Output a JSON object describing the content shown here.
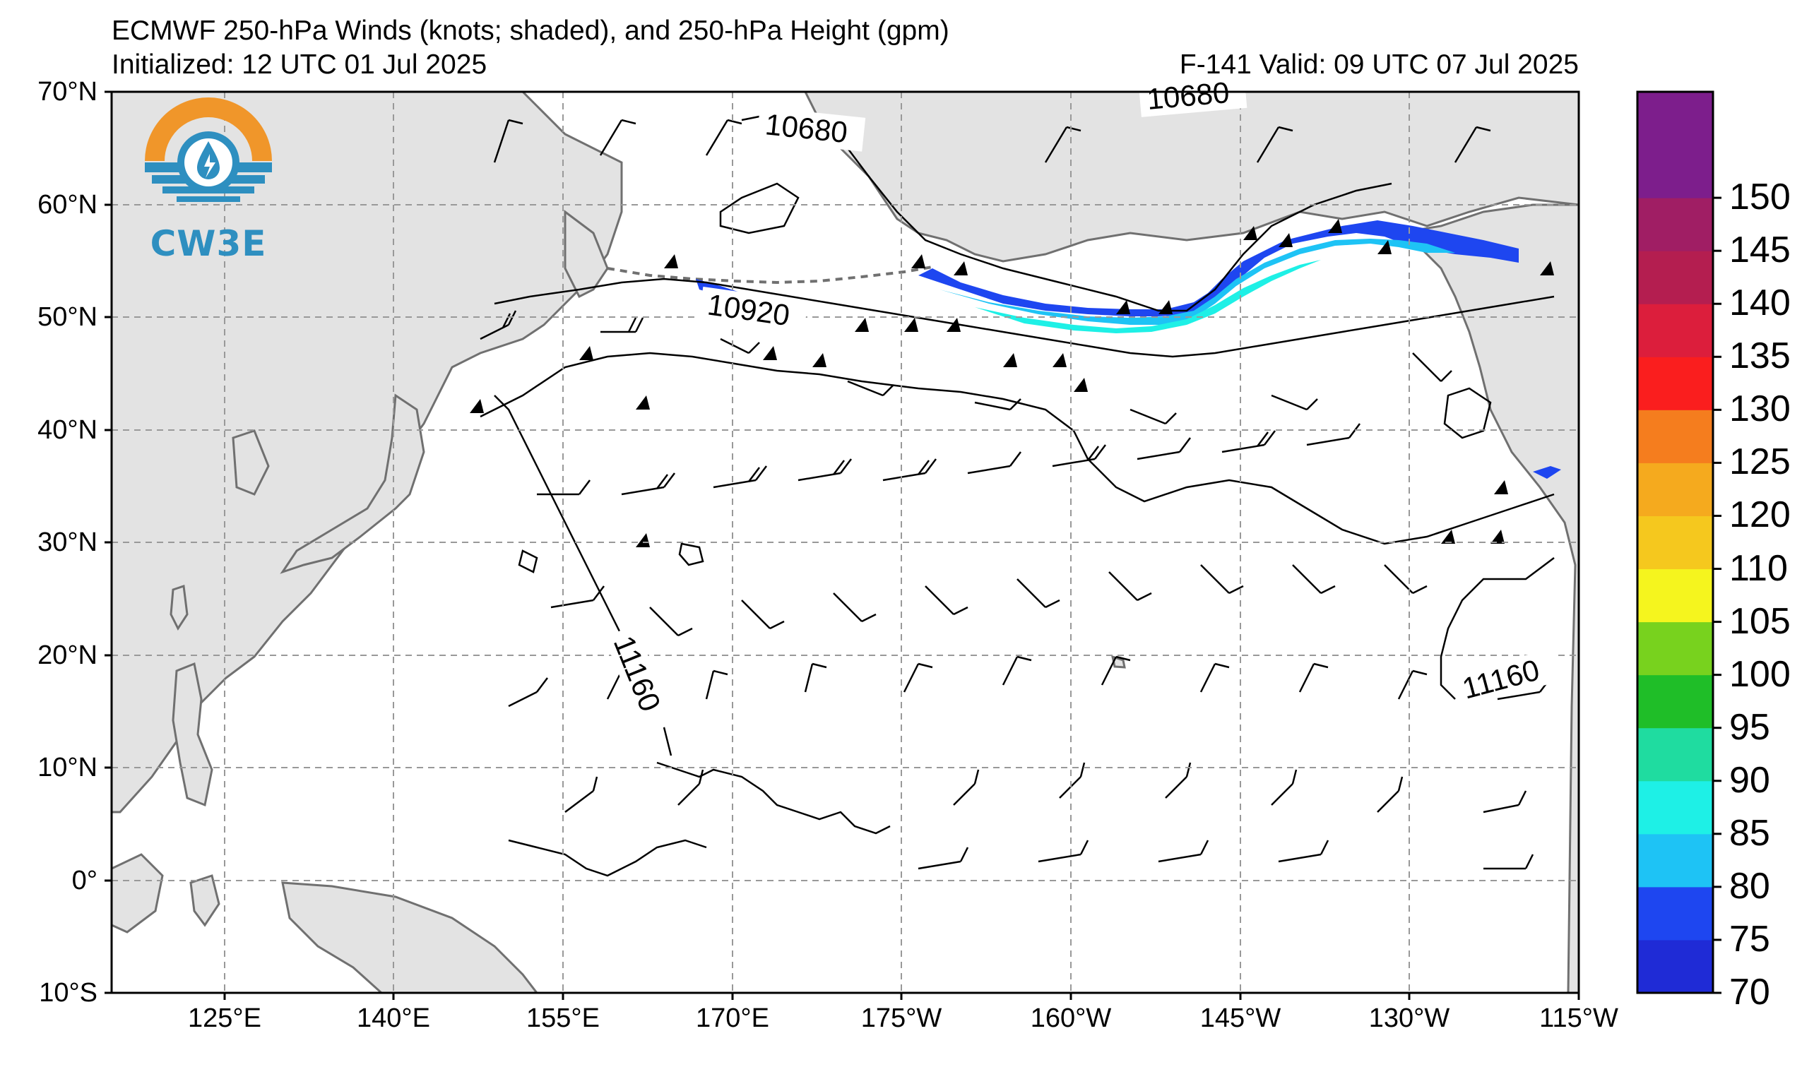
{
  "header": {
    "title": "ECMWF 250-hPa Winds (knots; shaded), and 250-hPa Height (gpm)",
    "initialized": "Initialized: 12 UTC 01 Jul 2025",
    "valid": "F-141  Valid: 09 UTC 07 Jul 2025"
  },
  "logo": {
    "text": "CW3E",
    "colors": {
      "orange": "#f0962a",
      "teal": "#2e8fc0"
    }
  },
  "map": {
    "projection": "equirectangular",
    "lon_range": [
      115,
      245
    ],
    "lat_range": [
      -10,
      70
    ],
    "lat_ticks": [
      {
        "value": 70,
        "label": "70°N"
      },
      {
        "value": 60,
        "label": "60°N"
      },
      {
        "value": 50,
        "label": "50°N"
      },
      {
        "value": 40,
        "label": "40°N"
      },
      {
        "value": 30,
        "label": "30°N"
      },
      {
        "value": 20,
        "label": "20°N"
      },
      {
        "value": 10,
        "label": "10°N"
      },
      {
        "value": 0,
        "label": "0°"
      },
      {
        "value": -10,
        "label": "10°S"
      }
    ],
    "lon_ticks": [
      {
        "value": 125,
        "label": "125°E"
      },
      {
        "value": 140,
        "label": "140°E"
      },
      {
        "value": 155,
        "label": "155°E"
      },
      {
        "value": 170,
        "label": "170°E"
      },
      {
        "value": 185,
        "label": "175°W"
      },
      {
        "value": 200,
        "label": "160°W"
      },
      {
        "value": 215,
        "label": "145°W"
      },
      {
        "value": 230,
        "label": "130°W"
      },
      {
        "value": 245,
        "label": "115°W"
      }
    ],
    "colors": {
      "land": "#e3e3e3",
      "coast": "#707070",
      "grid": "#999999",
      "contour": "#000000"
    },
    "height_contours": [
      {
        "value": "10680",
        "label_lon": 186,
        "label_lat": 67.3
      },
      {
        "value": "10680",
        "label_lon": 210,
        "label_lat": 69.5
      },
      {
        "value": "10920",
        "label_lon": 178.5,
        "label_lat": 50.2
      },
      {
        "value": "11160",
        "label_lon": 162,
        "label_lat": 17
      },
      {
        "value": "11160",
        "label_lon": 235.8,
        "label_lat": 18.3
      }
    ]
  },
  "colorbar": {
    "levels": [
      70,
      75,
      80,
      85,
      90,
      95,
      100,
      105,
      110,
      120,
      125,
      130,
      135,
      140,
      145,
      150,
      155
    ],
    "colors": [
      "#1f2bd6",
      "#1e46f0",
      "#1ec3f5",
      "#1ef0e6",
      "#1fdca0",
      "#1fbe28",
      "#78d21e",
      "#f5f51e",
      "#f5c81e",
      "#f5aa1e",
      "#f57d1e",
      "#fa1e1e",
      "#dc1e3c",
      "#b41e50",
      "#a01e64",
      "#7d1e8c",
      "#7d1e8c"
    ],
    "labels": [
      "70",
      "75",
      "80",
      "85",
      "90",
      "95",
      "100",
      "105",
      "110",
      "120",
      "125",
      "130",
      "135",
      "140",
      "145",
      "150"
    ]
  }
}
